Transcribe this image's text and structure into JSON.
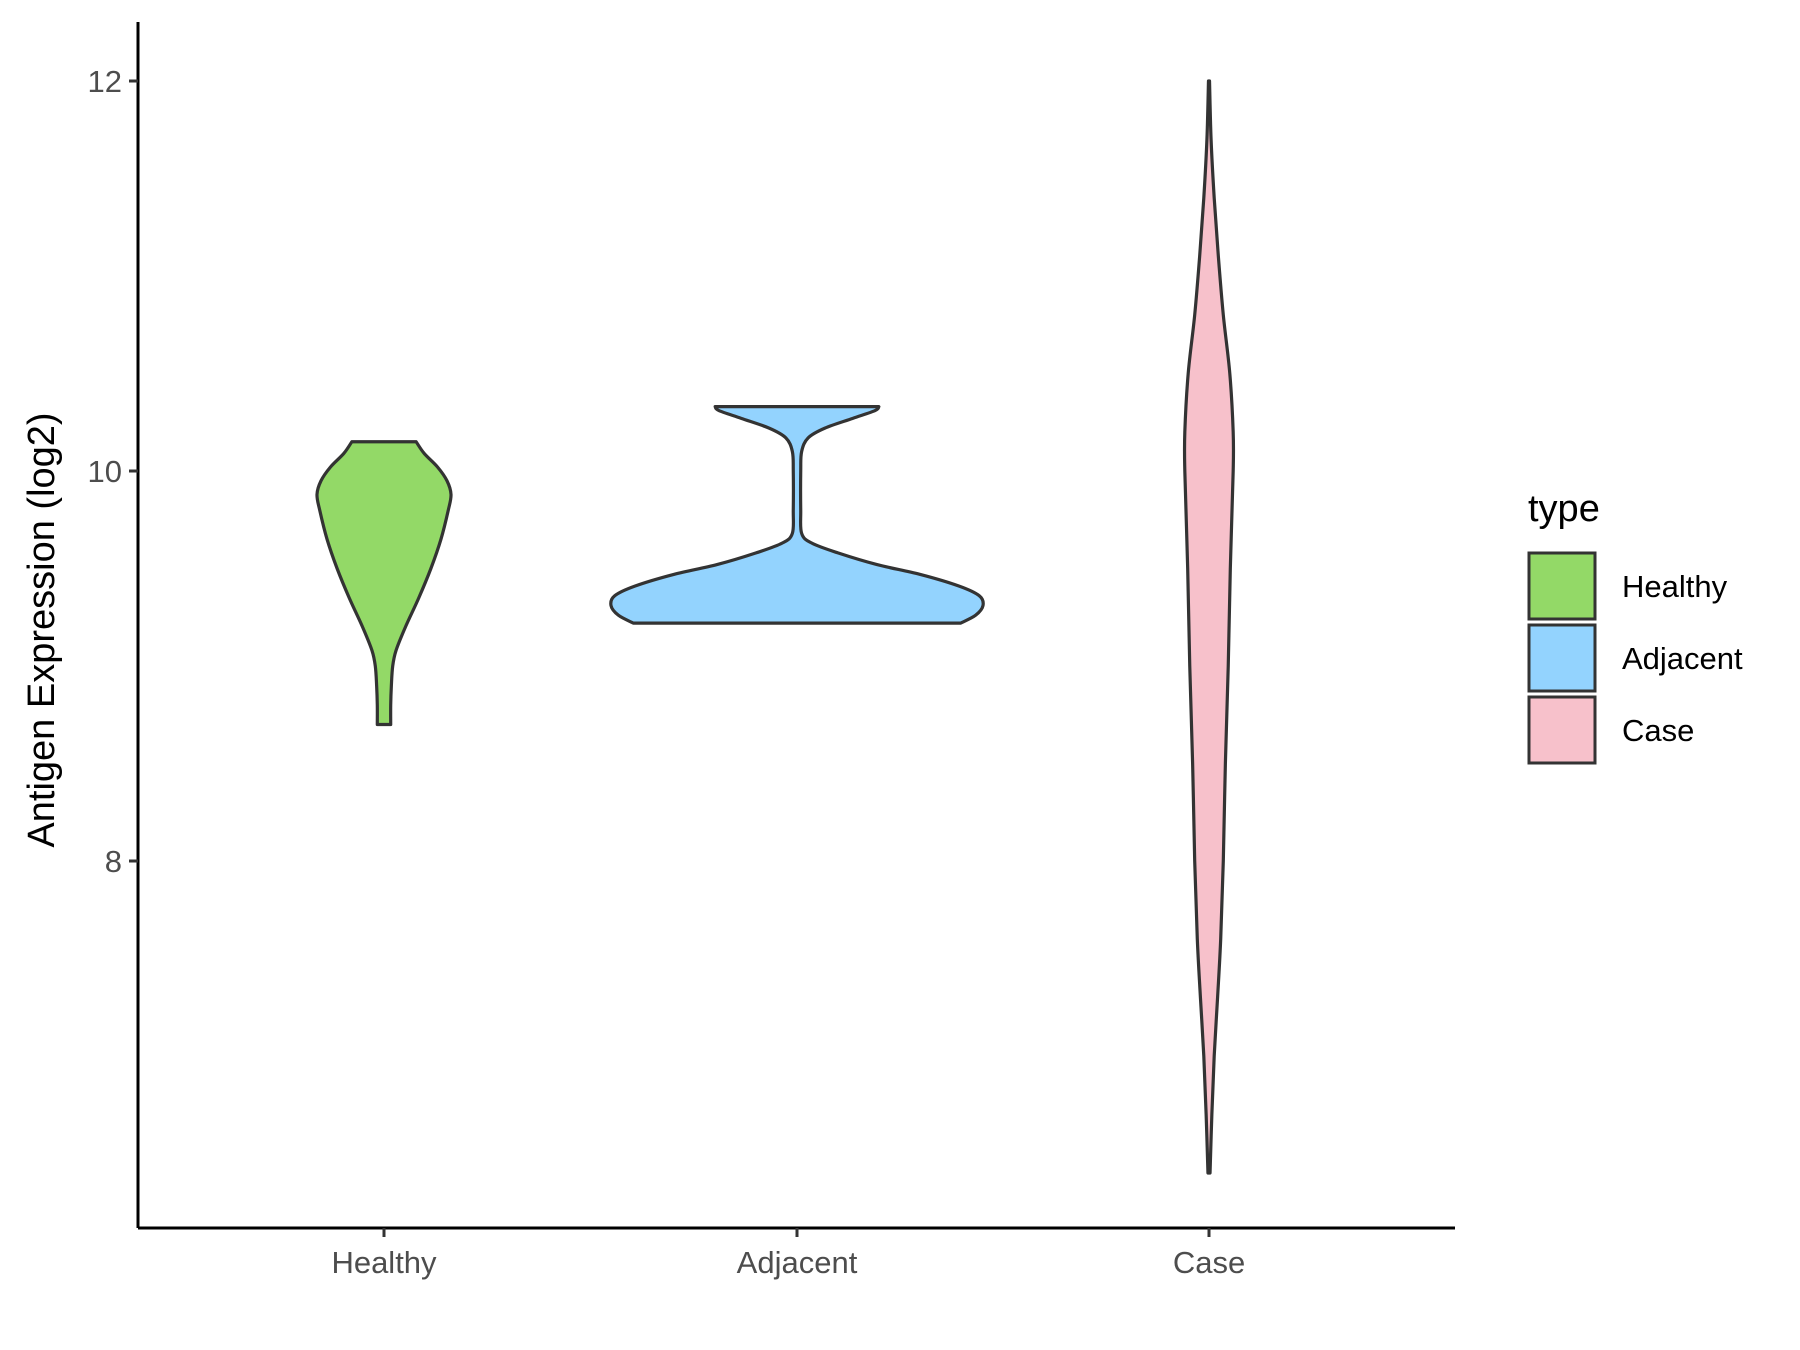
{
  "chart_data": {
    "type": "violin",
    "title": "",
    "xlabel": "",
    "ylabel": "Antigen Expression (log2)",
    "ylim": [
      6.1,
      12.3
    ],
    "yticks": [
      8,
      10,
      12
    ],
    "grid": false,
    "legend": {
      "title": "type",
      "placement": "right",
      "entries": [
        {
          "label": "Healthy",
          "color": "#93d967"
        },
        {
          "label": "Adjacent",
          "color": "#93d3fe"
        },
        {
          "label": "Case",
          "color": "#f7c1cb"
        }
      ]
    },
    "categories": [
      "Healthy",
      "Adjacent",
      "Case"
    ],
    "series": [
      {
        "category": "Healthy",
        "color": "#93d967",
        "min": 8.7,
        "max": 10.15,
        "density": [
          [
            8.7,
            0.1
          ],
          [
            8.8,
            0.1
          ],
          [
            8.9,
            0.11
          ],
          [
            9.0,
            0.13
          ],
          [
            9.08,
            0.18
          ],
          [
            9.2,
            0.32
          ],
          [
            9.35,
            0.52
          ],
          [
            9.5,
            0.7
          ],
          [
            9.65,
            0.85
          ],
          [
            9.8,
            0.96
          ],
          [
            9.88,
            1.0
          ],
          [
            9.95,
            0.94
          ],
          [
            10.02,
            0.8
          ],
          [
            10.09,
            0.6
          ],
          [
            10.15,
            0.48
          ]
        ]
      },
      {
        "category": "Adjacent",
        "color": "#93d3fe",
        "min": 9.22,
        "max": 10.33,
        "density": [
          [
            9.22,
            0.88
          ],
          [
            9.26,
            0.96
          ],
          [
            9.31,
            1.0
          ],
          [
            9.36,
            0.98
          ],
          [
            9.41,
            0.87
          ],
          [
            9.47,
            0.66
          ],
          [
            9.52,
            0.43
          ],
          [
            9.58,
            0.22
          ],
          [
            9.63,
            0.08
          ],
          [
            9.68,
            0.025
          ],
          [
            9.8,
            0.02
          ],
          [
            10.0,
            0.02
          ],
          [
            10.1,
            0.025
          ],
          [
            10.17,
            0.06
          ],
          [
            10.22,
            0.15
          ],
          [
            10.27,
            0.3
          ],
          [
            10.31,
            0.42
          ],
          [
            10.33,
            0.44
          ]
        ]
      },
      {
        "category": "Case",
        "color": "#f7c1cb",
        "min": 6.4,
        "max": 12.0,
        "density": [
          [
            6.4,
            0.04
          ],
          [
            6.7,
            0.11
          ],
          [
            7.0,
            0.2
          ],
          [
            7.3,
            0.33
          ],
          [
            7.6,
            0.45
          ],
          [
            8.0,
            0.55
          ],
          [
            8.5,
            0.63
          ],
          [
            9.0,
            0.74
          ],
          [
            9.5,
            0.82
          ],
          [
            10.0,
            0.93
          ],
          [
            10.2,
            0.93
          ],
          [
            10.5,
            0.8
          ],
          [
            10.8,
            0.55
          ],
          [
            11.1,
            0.36
          ],
          [
            11.4,
            0.2
          ],
          [
            11.7,
            0.08
          ],
          [
            12.0,
            0.02
          ]
        ]
      }
    ]
  }
}
